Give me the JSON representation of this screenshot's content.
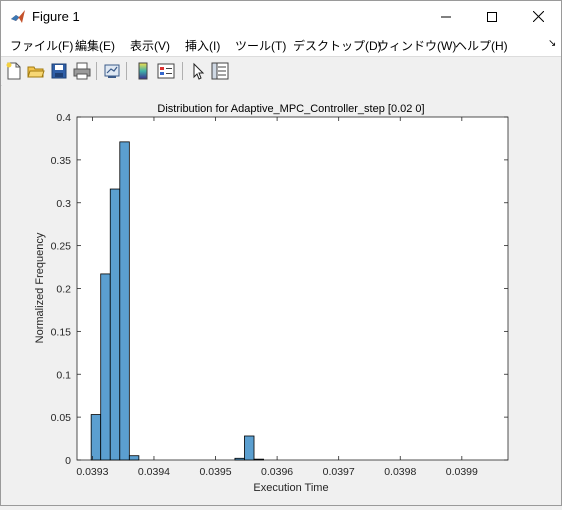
{
  "window": {
    "title": "Figure 1"
  },
  "menu": {
    "items": [
      "ファイル(F)",
      "編集(E)",
      "表示(V)",
      "挿入(I)",
      "ツール(T)",
      "デスクトップ(D)",
      "ウィンドウ(W)",
      "ヘルプ(H)"
    ]
  },
  "toolbar": {
    "icons": [
      "new-figure-icon",
      "open-file-icon",
      "save-icon",
      "print-icon",
      "link-plot-icon",
      "colorbar-icon",
      "legend-icon",
      "edit-plot-arrow-icon",
      "property-inspector-icon"
    ]
  },
  "colors": {
    "bar_fill": "#5b9fd0",
    "bar_edge": "#000000",
    "accent": "#0072bd"
  },
  "chart_data": {
    "type": "bar",
    "title": "Distribution for Adaptive_MPC_Controller_step [0.02 0]",
    "xlabel": "Execution Time",
    "ylabel": "Normalized Frequency",
    "xlim": [
      0.039275,
      0.039975
    ],
    "ylim": [
      0,
      0.4
    ],
    "xticks": [
      0.0393,
      0.0394,
      0.0395,
      0.0396,
      0.0397,
      0.0398,
      0.0399
    ],
    "xtick_labels": [
      "0.0393",
      "0.0394",
      "0.0395",
      "0.0396",
      "0.0397",
      "0.0398",
      "0.0399"
    ],
    "yticks": [
      0,
      0.05,
      0.1,
      0.15,
      0.2,
      0.25,
      0.3,
      0.35,
      0.4
    ],
    "ytick_labels": [
      "0",
      "0.05",
      "0.1",
      "0.15",
      "0.2",
      "0.25",
      "0.3",
      "0.35",
      "0.4"
    ],
    "bin_width": 1.55e-05,
    "bins": [
      {
        "x0": 0.039298,
        "value": 0.053
      },
      {
        "x0": 0.0393135,
        "value": 0.217
      },
      {
        "x0": 0.039329,
        "value": 0.316
      },
      {
        "x0": 0.0393445,
        "value": 0.371
      },
      {
        "x0": 0.03936,
        "value": 0.005
      },
      {
        "x0": 0.039344,
        "value": 0
      },
      {
        "x0": 0.0395315,
        "value": 0.002
      },
      {
        "x0": 0.039547,
        "value": 0.028
      },
      {
        "x0": 0.0395625,
        "value": 0.001
      }
    ],
    "grid": false
  }
}
